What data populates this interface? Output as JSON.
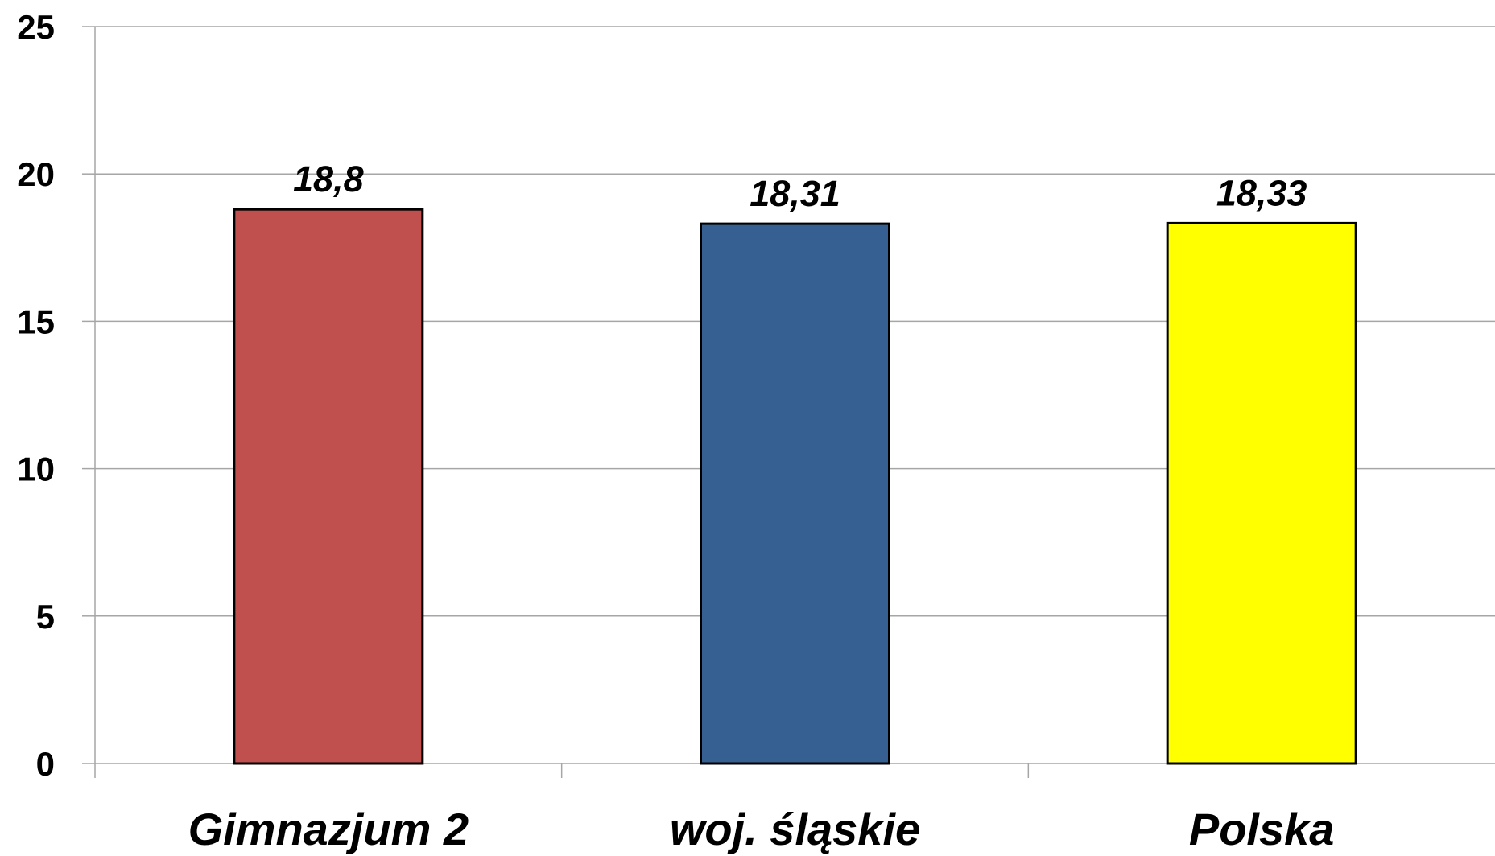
{
  "chart_data": {
    "type": "bar",
    "categories": [
      "Gimnazjum 2",
      "woj. śląskie",
      "Polska"
    ],
    "values": [
      18.8,
      18.31,
      18.33
    ],
    "data_labels": [
      "18,8",
      "18,31",
      "18,33"
    ],
    "bar_colors": [
      "#C0504D",
      "#366092",
      "#FFFF00"
    ],
    "bar_outline_color": "#000000",
    "gridline_color": "#A6A6A6",
    "axis_color": "#A6A6A6",
    "ylim": [
      0,
      25
    ],
    "yticks": [
      0,
      5,
      10,
      15,
      20,
      25
    ],
    "grid": true,
    "legend": "none",
    "title": "",
    "xlabel": "",
    "ylabel": ""
  }
}
